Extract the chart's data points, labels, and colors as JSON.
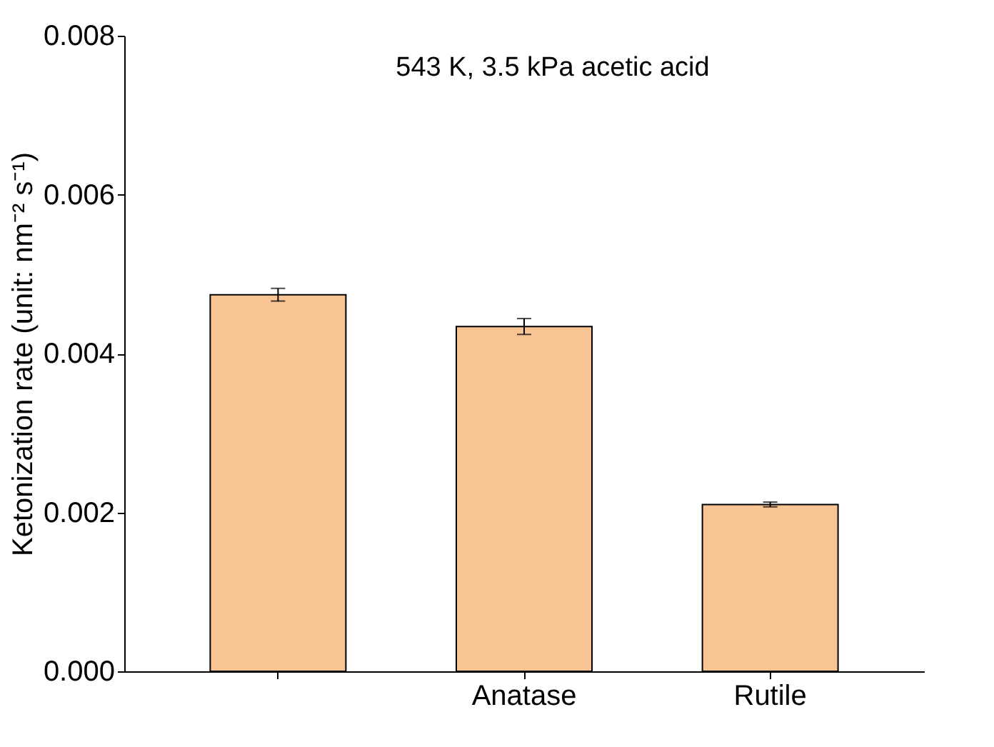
{
  "chart_data": {
    "type": "bar",
    "title": "543 K, 3.5 kPa acetic acid",
    "ylabel": "Ketonization rate (unit: nm⁻² s⁻¹)",
    "categories": [
      null,
      "Anatase",
      "Rutile"
    ],
    "values": [
      0.00474,
      0.00434,
      0.0021
    ],
    "errors": [
      8e-05,
      0.0001,
      3e-05
    ],
    "color": "#f8c493",
    "ylim": [
      0,
      0.008
    ],
    "yticks": [
      {
        "value": 0,
        "label": "0.000"
      },
      {
        "value": 0.002,
        "label": "0.002"
      },
      {
        "value": 0.004,
        "label": "0.004"
      },
      {
        "value": 0.006,
        "label": "0.006"
      },
      {
        "value": 0.008,
        "label": "0.008"
      }
    ],
    "grid": false
  }
}
